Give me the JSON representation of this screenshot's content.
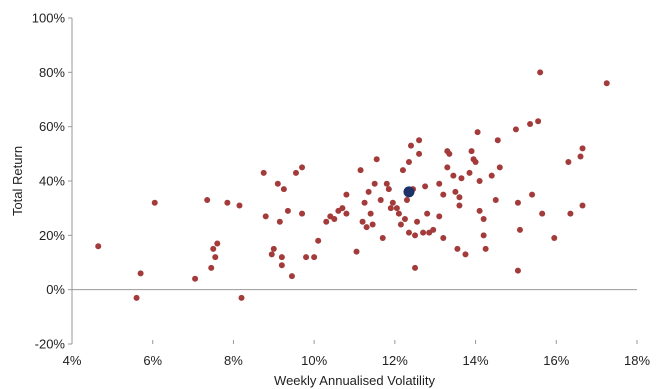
{
  "chart_data": {
    "type": "scatter",
    "xlabel": "Weekly Annualised Volatility",
    "ylabel": "Total Return",
    "xlim": [
      0.04,
      0.18
    ],
    "ylim": [
      -0.2,
      1.0
    ],
    "x_ticks": [
      0.04,
      0.06,
      0.08,
      0.1,
      0.12,
      0.14,
      0.16,
      0.18
    ],
    "x_tick_labels": [
      "4%",
      "6%",
      "8%",
      "10%",
      "12%",
      "14%",
      "16%",
      "18%"
    ],
    "y_ticks": [
      -0.2,
      0.0,
      0.2,
      0.4,
      0.6,
      0.8,
      1.0
    ],
    "y_tick_labels": [
      "-20%",
      "0%",
      "20%",
      "40%",
      "60%",
      "80%",
      "100%"
    ],
    "grid": false,
    "colors": {
      "points": "#a33b3b",
      "highlight": "#1f3169",
      "axis": "#999999"
    },
    "series": [
      {
        "points": [
          [
            0.0465,
            0.16
          ],
          [
            0.056,
            -0.03
          ],
          [
            0.057,
            0.06
          ],
          [
            0.0605,
            0.32
          ],
          [
            0.0705,
            0.04
          ],
          [
            0.0735,
            0.33
          ],
          [
            0.0745,
            0.08
          ],
          [
            0.075,
            0.15
          ],
          [
            0.0755,
            0.12
          ],
          [
            0.076,
            0.17
          ],
          [
            0.0785,
            0.32
          ],
          [
            0.0815,
            0.31
          ],
          [
            0.082,
            -0.03
          ],
          [
            0.0875,
            0.43
          ],
          [
            0.088,
            0.27
          ],
          [
            0.0895,
            0.13
          ],
          [
            0.09,
            0.15
          ],
          [
            0.091,
            0.39
          ],
          [
            0.0915,
            0.25
          ],
          [
            0.092,
            0.12
          ],
          [
            0.092,
            0.09
          ],
          [
            0.0925,
            0.37
          ],
          [
            0.0935,
            0.29
          ],
          [
            0.0945,
            0.05
          ],
          [
            0.0955,
            0.43
          ],
          [
            0.097,
            0.45
          ],
          [
            0.097,
            0.28
          ],
          [
            0.098,
            0.12
          ],
          [
            0.1,
            0.12
          ],
          [
            0.101,
            0.18
          ],
          [
            0.103,
            0.25
          ],
          [
            0.104,
            0.27
          ],
          [
            0.105,
            0.26
          ],
          [
            0.106,
            0.29
          ],
          [
            0.107,
            0.3
          ],
          [
            0.108,
            0.35
          ],
          [
            0.108,
            0.28
          ],
          [
            0.1105,
            0.14
          ],
          [
            0.1115,
            0.44
          ],
          [
            0.112,
            0.25
          ],
          [
            0.1125,
            0.32
          ],
          [
            0.113,
            0.23
          ],
          [
            0.1135,
            0.36
          ],
          [
            0.114,
            0.28
          ],
          [
            0.1145,
            0.24
          ],
          [
            0.115,
            0.39
          ],
          [
            0.1155,
            0.48
          ],
          [
            0.1165,
            0.33
          ],
          [
            0.117,
            0.19
          ],
          [
            0.118,
            0.39
          ],
          [
            0.1185,
            0.37
          ],
          [
            0.119,
            0.3
          ],
          [
            0.1195,
            0.32
          ],
          [
            0.1205,
            0.3
          ],
          [
            0.121,
            0.28
          ],
          [
            0.1215,
            0.24
          ],
          [
            0.122,
            0.44
          ],
          [
            0.1225,
            0.26
          ],
          [
            0.123,
            0.33
          ],
          [
            0.1235,
            0.21
          ],
          [
            0.1235,
            0.47
          ],
          [
            0.124,
            0.53
          ],
          [
            0.1245,
            0.37
          ],
          [
            0.125,
            0.2
          ],
          [
            0.125,
            0.08
          ],
          [
            0.1255,
            0.25
          ],
          [
            0.126,
            0.5
          ],
          [
            0.126,
            0.55
          ],
          [
            0.127,
            0.21
          ],
          [
            0.1275,
            0.38
          ],
          [
            0.128,
            0.28
          ],
          [
            0.1285,
            0.21
          ],
          [
            0.1295,
            0.22
          ],
          [
            0.131,
            0.39
          ],
          [
            0.131,
            0.27
          ],
          [
            0.132,
            0.35
          ],
          [
            0.132,
            0.19
          ],
          [
            0.133,
            0.51
          ],
          [
            0.133,
            0.45
          ],
          [
            0.1335,
            0.5
          ],
          [
            0.1345,
            0.42
          ],
          [
            0.135,
            0.36
          ],
          [
            0.1355,
            0.15
          ],
          [
            0.136,
            0.31
          ],
          [
            0.136,
            0.34
          ],
          [
            0.1365,
            0.41
          ],
          [
            0.1375,
            0.13
          ],
          [
            0.1385,
            0.43
          ],
          [
            0.139,
            0.51
          ],
          [
            0.1395,
            0.48
          ],
          [
            0.14,
            0.47
          ],
          [
            0.1405,
            0.58
          ],
          [
            0.141,
            0.4
          ],
          [
            0.141,
            0.29
          ],
          [
            0.142,
            0.26
          ],
          [
            0.142,
            0.2
          ],
          [
            0.1425,
            0.15
          ],
          [
            0.144,
            0.42
          ],
          [
            0.145,
            0.33
          ],
          [
            0.1455,
            0.55
          ],
          [
            0.146,
            0.45
          ],
          [
            0.15,
            0.59
          ],
          [
            0.1505,
            0.07
          ],
          [
            0.1505,
            0.32
          ],
          [
            0.151,
            0.22
          ],
          [
            0.1535,
            0.61
          ],
          [
            0.154,
            0.35
          ],
          [
            0.1555,
            0.62
          ],
          [
            0.156,
            0.8
          ],
          [
            0.1565,
            0.28
          ],
          [
            0.1595,
            0.19
          ],
          [
            0.163,
            0.47
          ],
          [
            0.1635,
            0.28
          ],
          [
            0.166,
            0.49
          ],
          [
            0.1665,
            0.52
          ],
          [
            0.1665,
            0.31
          ],
          [
            0.1725,
            0.76
          ]
        ]
      },
      {
        "highlight": true,
        "points": [
          [
            0.1235,
            0.36
          ]
        ]
      }
    ]
  }
}
